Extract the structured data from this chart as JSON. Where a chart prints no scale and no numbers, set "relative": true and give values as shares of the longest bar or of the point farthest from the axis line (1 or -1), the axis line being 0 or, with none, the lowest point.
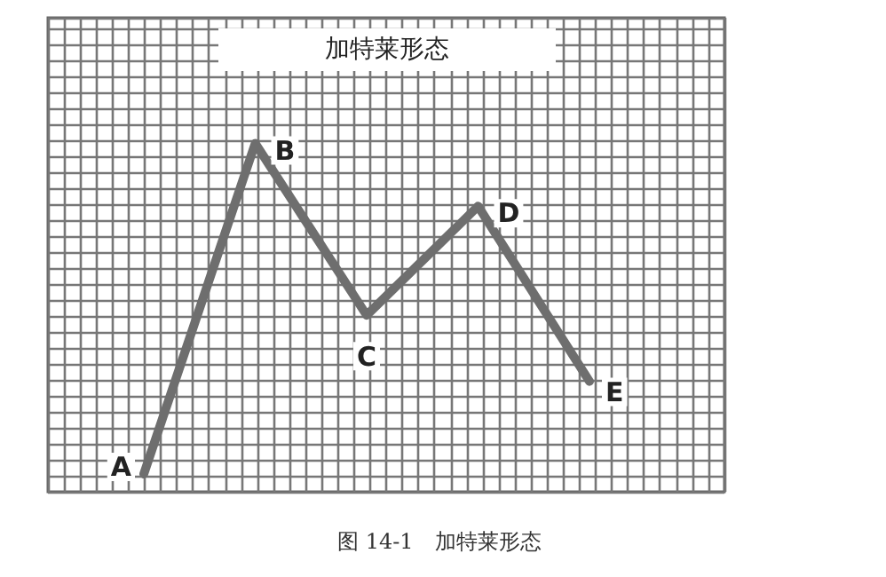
{
  "chart_data": {
    "type": "line",
    "title": "加特莱形态",
    "relative": true,
    "categories": [
      null,
      null,
      null,
      null,
      null
    ],
    "series": [
      {
        "color": "#6e6e6e",
        "values": [
          0,
          1,
          0.48,
          0.81,
          0.28
        ]
      }
    ],
    "grid": true,
    "marker": "none",
    "line_style": "solid",
    "annotations": [
      "A",
      "B",
      "C",
      "D",
      "E",
      "图 14-1　加特莱形态"
    ]
  }
}
